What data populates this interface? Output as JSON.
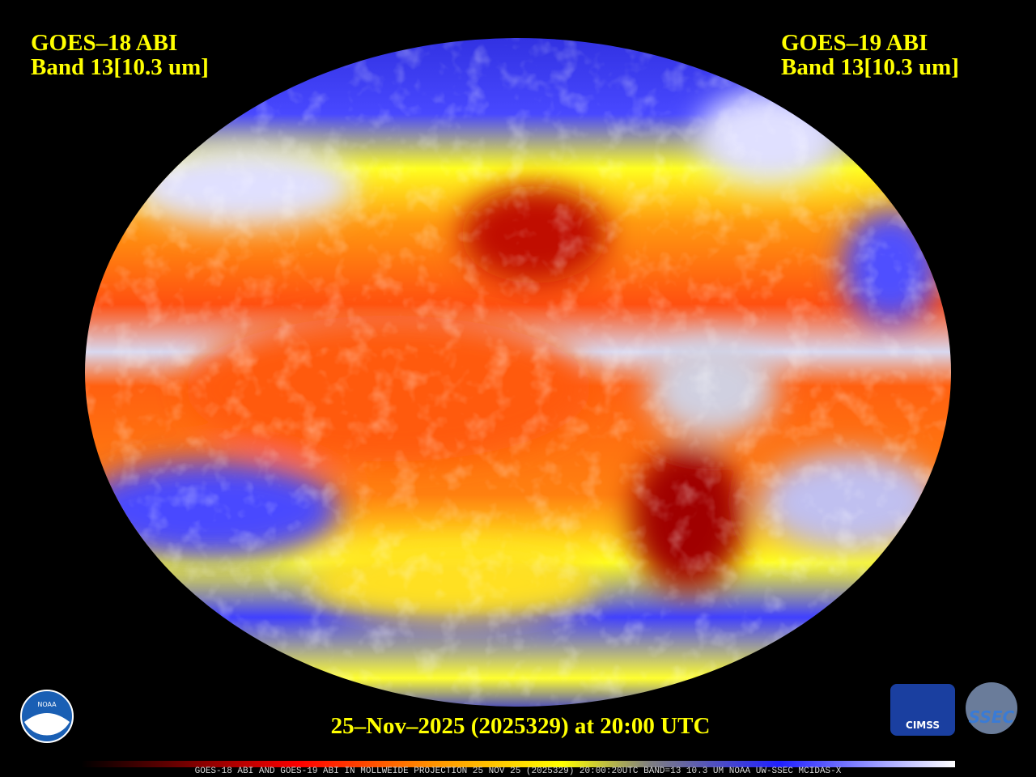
{
  "header": {
    "left": [
      "GOES–18 ABI",
      "Band 13[10.3 um]"
    ],
    "right": [
      "GOES–19 ABI",
      "Band 13[10.3 um]"
    ]
  },
  "timestamp": "25–Nov–2025 (2025329) at 20:00 UTC",
  "footer": "GOES-18 ABI AND GOES-19 ABI IN MOLLWEIDE PROJECTION 25 NOV 25 (2025329) 20:00:20UTC BAND=13 10.3 UM NOAA UW-SSEC MCIDAS-X",
  "logos": [
    "NOAA",
    "CIMSS",
    "SSEC"
  ]
}
